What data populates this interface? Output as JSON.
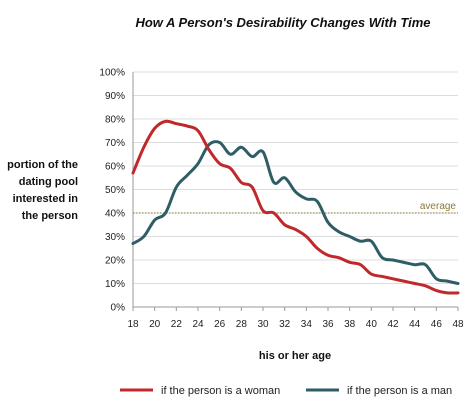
{
  "chart_data": {
    "type": "line",
    "title": "How A Person's Desirability Changes  With Time",
    "xlabel": "his or her age",
    "ylabel_lines": [
      "portion of the",
      "dating pool",
      "interested in",
      "the person"
    ],
    "x": [
      18,
      19,
      20,
      21,
      22,
      23,
      24,
      25,
      26,
      27,
      28,
      29,
      30,
      31,
      32,
      33,
      34,
      35,
      36,
      37,
      38,
      39,
      40,
      41,
      42,
      43,
      44,
      45,
      46,
      47,
      48
    ],
    "xticks": [
      "18",
      "20",
      "22",
      "24",
      "26",
      "28",
      "30",
      "32",
      "34",
      "36",
      "38",
      "40",
      "42",
      "44",
      "46",
      "48"
    ],
    "yticks": [
      "0%",
      "10%",
      "20%",
      "30%",
      "40%",
      "50%",
      "60%",
      "70%",
      "80%",
      "90%",
      "100%"
    ],
    "xlim": [
      18,
      48
    ],
    "ylim": [
      0,
      100
    ],
    "reference_line": {
      "value": 40,
      "label": "average",
      "color": "#8a7a3a"
    },
    "series": [
      {
        "name": "if the person is a woman",
        "color": "#c0282b",
        "values": [
          57,
          68,
          76,
          79,
          78,
          77,
          75,
          67,
          61,
          59,
          53,
          51,
          41,
          40,
          35,
          33,
          30,
          25,
          22,
          21,
          19,
          18,
          14,
          13,
          12,
          11,
          10,
          9,
          7,
          6,
          6
        ]
      },
      {
        "name": "if the person is a man",
        "color": "#2e5d66",
        "values": [
          27,
          30,
          37,
          40,
          51,
          56,
          61,
          69,
          70,
          65,
          68,
          64,
          66,
          53,
          55,
          49,
          46,
          45,
          36,
          32,
          30,
          28,
          28,
          21,
          20,
          19,
          18,
          18,
          12,
          11,
          10
        ]
      }
    ]
  }
}
